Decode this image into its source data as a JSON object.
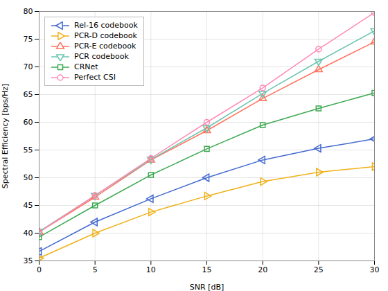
{
  "chart_data": {
    "type": "line",
    "xlabel": "SNR [dB]",
    "ylabel": "Spectral Efficiency [bps/Hz]",
    "x": [
      0,
      5,
      10,
      15,
      20,
      25,
      30
    ],
    "series": [
      {
        "name": "Rel-16 codebook",
        "marker": "triangle-left",
        "values": [
          36.7,
          42.0,
          46.2,
          50.0,
          53.2,
          55.3,
          57.0
        ]
      },
      {
        "name": "PCR-D codebook",
        "marker": "triangle-right",
        "values": [
          35.5,
          40.0,
          43.8,
          46.7,
          49.3,
          51.0,
          52.0
        ]
      },
      {
        "name": "PCR-E codebook",
        "marker": "triangle-up",
        "values": [
          40.2,
          46.5,
          53.2,
          58.5,
          64.3,
          69.5,
          74.5
        ]
      },
      {
        "name": "PCR codebook",
        "marker": "triangle-down",
        "values": [
          40.3,
          46.8,
          53.3,
          59.0,
          65.2,
          71.0,
          76.5
        ]
      },
      {
        "name": "CRNet",
        "marker": "square",
        "values": [
          39.3,
          45.0,
          50.5,
          55.2,
          59.5,
          62.5,
          65.3
        ]
      },
      {
        "name": "Perfect CSI",
        "marker": "circle",
        "values": [
          40.2,
          46.8,
          53.5,
          60.0,
          66.2,
          73.2,
          79.8
        ]
      }
    ],
    "xlim": [
      0,
      30
    ],
    "ylim": [
      35,
      80
    ],
    "xticks": [
      0,
      5,
      10,
      15,
      20,
      25,
      30
    ],
    "yticks": [
      35,
      40,
      45,
      50,
      55,
      60,
      65,
      70,
      75,
      80
    ],
    "grid": true,
    "legend": "upper left"
  }
}
